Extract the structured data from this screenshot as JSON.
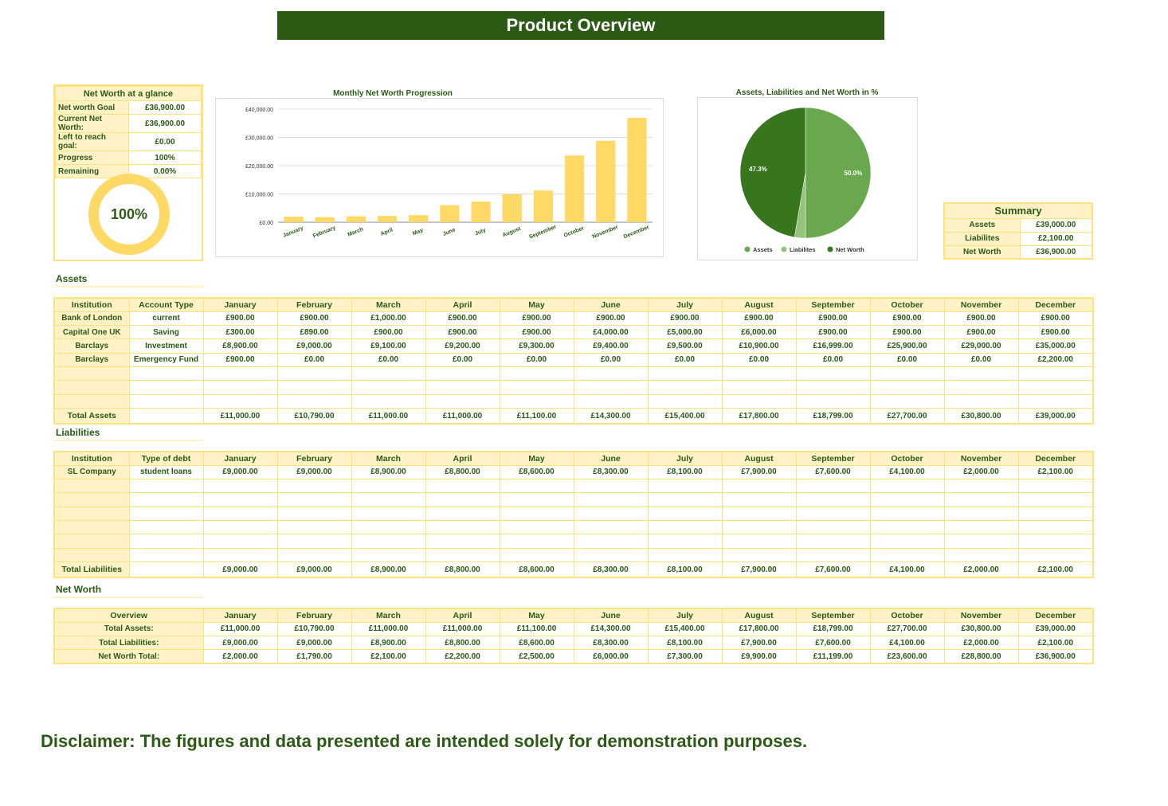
{
  "header": {
    "title": "Product Overview"
  },
  "glance": {
    "title": "Net Worth  at a glance",
    "rows": [
      {
        "label": "Net worth Goal",
        "value": "£36,900.00"
      },
      {
        "label": "Current Net Worth:",
        "value": "£36,900.00"
      },
      {
        "label": "Left to reach goal:",
        "value": "£0.00"
      },
      {
        "label": "Progress",
        "value": "100%"
      },
      {
        "label": "Remaining",
        "value": "0.00%"
      }
    ],
    "donut_label": "100%",
    "progress_fraction": 1.0
  },
  "colors": {
    "dark_green": "#2a5a14",
    "yellow": "#ffd966",
    "light_yellow": "#fff2c6",
    "border_yellow": "#ffe27a",
    "mid_green": "#6aa84f",
    "pale_green": "#93c47d",
    "forest_green": "#38761d"
  },
  "chart_data": [
    {
      "type": "bar",
      "title": "Monthly Net Worth Progression",
      "categories": [
        "January",
        "February",
        "March",
        "April",
        "May",
        "June",
        "July",
        "August",
        "September",
        "October",
        "November",
        "December"
      ],
      "values": [
        2000,
        1790,
        2100,
        2200,
        2500,
        6000,
        7300,
        9900,
        11199,
        23600,
        28800,
        36900
      ],
      "ylim": [
        0,
        40000
      ],
      "yticks": [
        0,
        10000,
        20000,
        30000,
        40000
      ],
      "ytick_labels": [
        "£0.00",
        "£10,000.00",
        "£20,000.00",
        "£30,000.00",
        "£40,000.00"
      ],
      "xlabel": "",
      "ylabel": ""
    },
    {
      "type": "pie",
      "title": "Assets, Liabilities and Net Worth in %",
      "labels": [
        "Assets",
        "Liabilites",
        "Net Worth"
      ],
      "values": [
        50.0,
        2.7,
        47.3
      ],
      "data_labels": [
        "50.0%",
        "",
        "47.3%"
      ],
      "legend": "bottom"
    }
  ],
  "summary": {
    "title": "Summary",
    "rows": [
      {
        "label": "Assets",
        "value": "£39,000.00"
      },
      {
        "label": "Liabilites",
        "value": "£2,100.00"
      },
      {
        "label": "Net Worth",
        "value": "£36,900.00"
      }
    ]
  },
  "months": [
    "January",
    "February",
    "March",
    "April",
    "May",
    "June",
    "July",
    "August",
    "September",
    "October",
    "November",
    "December"
  ],
  "assets": {
    "section_title": "Assets",
    "col1": "Institution",
    "col2": "Account Type",
    "rows": [
      {
        "institution": "Bank of London",
        "type": "current",
        "values": [
          "£900.00",
          "£900.00",
          "£1,000.00",
          "£900.00",
          "£900.00",
          "£900.00",
          "£900.00",
          "£900.00",
          "£900.00",
          "£900.00",
          "£900.00",
          "£900.00"
        ]
      },
      {
        "institution": "Capital One UK",
        "type": "Saving",
        "values": [
          "£300.00",
          "£890.00",
          "£900.00",
          "£900.00",
          "£900.00",
          "£4,000.00",
          "£5,000.00",
          "£6,000.00",
          "£900.00",
          "£900.00",
          "£900.00",
          "£900.00"
        ]
      },
      {
        "institution": "Barclays",
        "type": "Investment",
        "values": [
          "£8,900.00",
          "£9,000.00",
          "£9,100.00",
          "£9,200.00",
          "£9,300.00",
          "£9,400.00",
          "£9,500.00",
          "£10,900.00",
          "£16,999.00",
          "£25,900.00",
          "£29,000.00",
          "£35,000.00"
        ]
      },
      {
        "institution": "Barclays",
        "type": "Emergency Fund",
        "values": [
          "£900.00",
          "£0.00",
          "£0.00",
          "£0.00",
          "£0.00",
          "£0.00",
          "£0.00",
          "£0.00",
          "£0.00",
          "£0.00",
          "£0.00",
          "£2,200.00"
        ]
      }
    ],
    "total_label": "Total Assets",
    "totals": [
      "£11,000.00",
      "£10,790.00",
      "£11,000.00",
      "£11,000.00",
      "£11,100.00",
      "£14,300.00",
      "£15,400.00",
      "£17,800.00",
      "£18,799.00",
      "£27,700.00",
      "£30,800.00",
      "£39,000.00"
    ]
  },
  "liabilities": {
    "section_title": "Liabilities",
    "col1": "Institution",
    "col2": "Type of debt",
    "rows": [
      {
        "institution": "SL Company",
        "type": "student loans",
        "values": [
          "£9,000.00",
          "£9,000.00",
          "£8,900.00",
          "£8,800.00",
          "£8,600.00",
          "£8,300.00",
          "£8,100.00",
          "£7,900.00",
          "£7,600.00",
          "£4,100.00",
          "£2,000.00",
          "£2,100.00"
        ]
      }
    ],
    "total_label": "Total Liabilities",
    "totals": [
      "£9,000.00",
      "£9,000.00",
      "£8,900.00",
      "£8,800.00",
      "£8,600.00",
      "£8,300.00",
      "£8,100.00",
      "£7,900.00",
      "£7,600.00",
      "£4,100.00",
      "£2,000.00",
      "£2,100.00"
    ]
  },
  "networth": {
    "section_title": "Net Worth",
    "col": "Overview",
    "rows": [
      {
        "label": "Total Assets:",
        "values": [
          "£11,000.00",
          "£10,790.00",
          "£11,000.00",
          "£11,000.00",
          "£11,100.00",
          "£14,300.00",
          "£15,400.00",
          "£17,800.00",
          "£18,799.00",
          "£27,700.00",
          "£30,800.00",
          "£39,000.00"
        ]
      },
      {
        "label": "Total  Liabilities:",
        "values": [
          "£9,000.00",
          "£9,000.00",
          "£8,900.00",
          "£8,800.00",
          "£8,600.00",
          "£8,300.00",
          "£8,100.00",
          "£7,900.00",
          "£7,600.00",
          "£4,100.00",
          "£2,000.00",
          "£2,100.00"
        ]
      },
      {
        "label": "Net Worth Total:",
        "values": [
          "£2,000.00",
          "£1,790.00",
          "£2,100.00",
          "£2,200.00",
          "£2,500.00",
          "£6,000.00",
          "£7,300.00",
          "£9,900.00",
          "£11,199.00",
          "£23,600.00",
          "£28,800.00",
          "£36,900.00"
        ]
      }
    ]
  },
  "disclaimer": "Disclaimer: The figures and data presented are intended solely for demonstration purposes."
}
